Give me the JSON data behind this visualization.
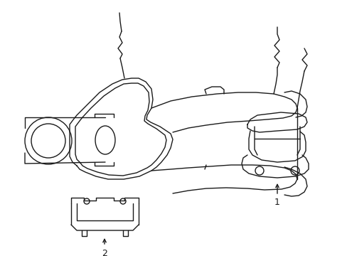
{
  "bg_color": "#ffffff",
  "line_color": "#1a1a1a",
  "line_width": 1.0,
  "figsize": [
    4.89,
    3.6
  ],
  "dpi": 100,
  "label1": "1",
  "label2": "2"
}
